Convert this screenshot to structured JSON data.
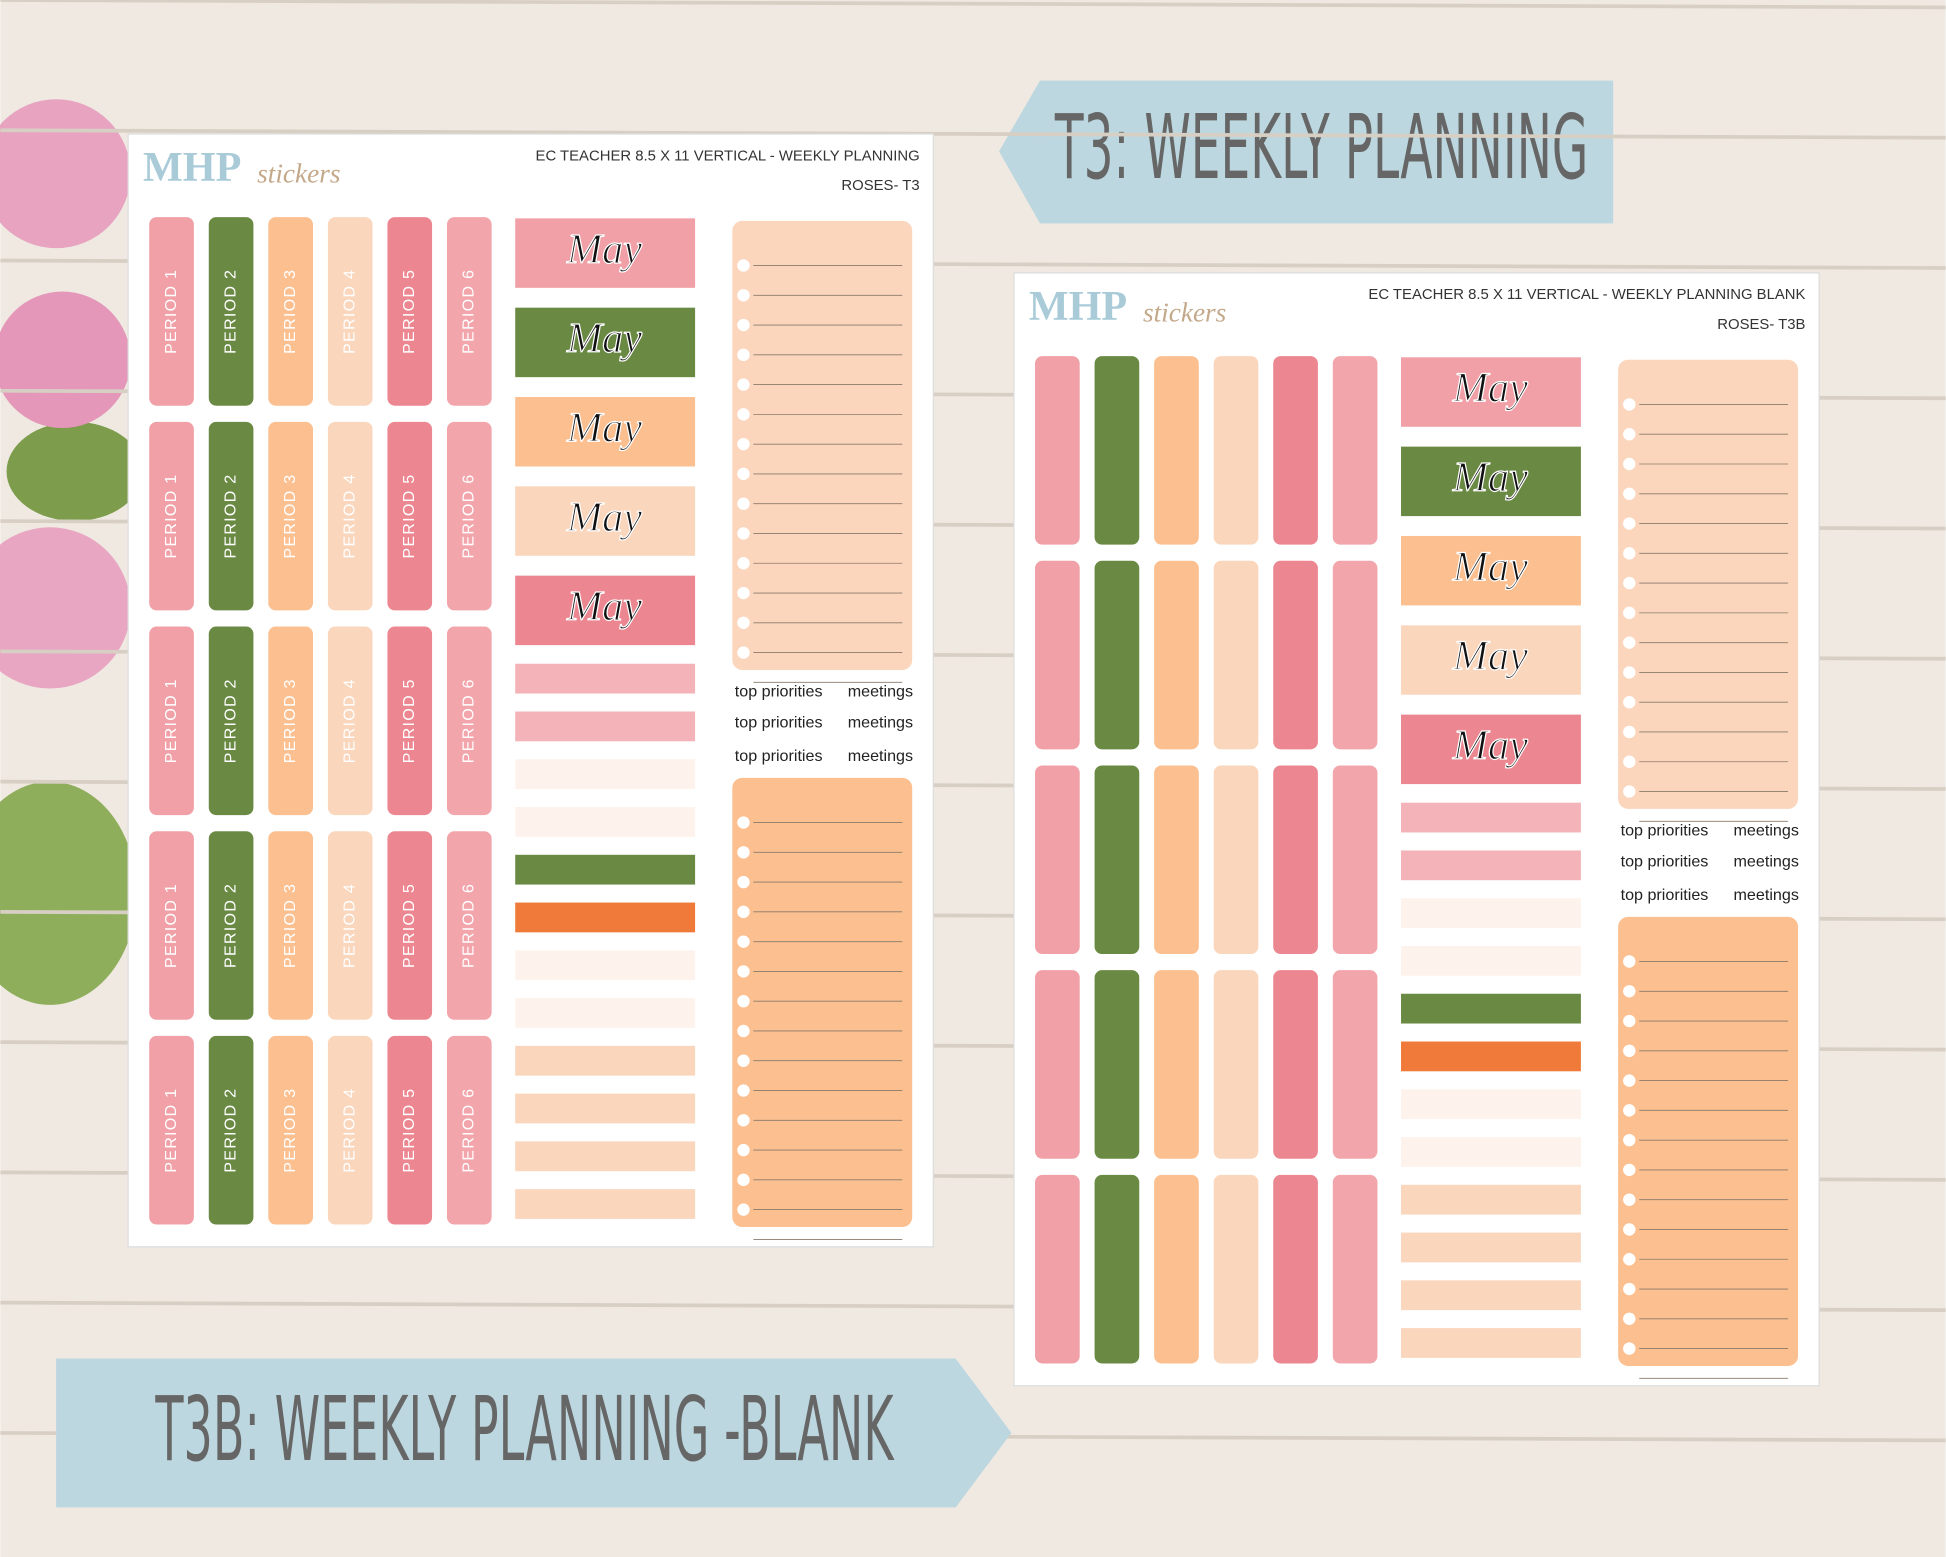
{
  "banners": {
    "top": "T3: WEEKLY PLANNING",
    "bottom": "T3B: WEEKLY PLANNING -BLANK"
  },
  "sheets": [
    {
      "logo": {
        "brand": "MHP",
        "suffix": "stickers"
      },
      "title": "EC TEACHER 8.5 X 11 VERTICAL - WEEKLY PLANNING",
      "code": "ROSES- T3",
      "period_labels": [
        "PERIOD 1",
        "PERIOD 2",
        "PERIOD 3",
        "PERIOD 4",
        "PERIOD 5",
        "PERIOD 6"
      ],
      "month_label": "May",
      "priorities_label": "top priorities",
      "meetings_label": "meetings"
    },
    {
      "logo": {
        "brand": "MHP",
        "suffix": "stickers"
      },
      "title": "EC TEACHER 8.5 X 11 VERTICAL - WEEKLY PLANNING BLANK",
      "code": "ROSES- T3B",
      "month_label": "May",
      "priorities_label": "top priorities",
      "meetings_label": "meetings"
    }
  ]
}
